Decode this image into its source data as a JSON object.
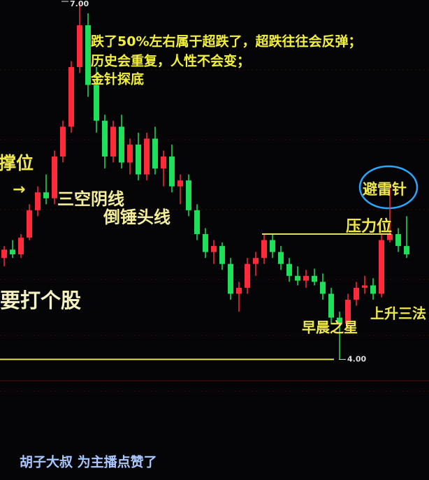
{
  "chart_data": {
    "type": "candlestick",
    "ylim": [
      3.85,
      7.0
    ],
    "yticks": [
      {
        "value": 7,
        "label": "7.00"
      },
      {
        "value": 4,
        "label": "4.00"
      }
    ],
    "up_color": "#ff2a3a",
    "down_color": "#1fe05a",
    "candles": [
      [
        4.85,
        4.95,
        4.78,
        4.92
      ],
      [
        4.92,
        5.0,
        4.85,
        4.88
      ],
      [
        4.88,
        5.05,
        4.85,
        5.02
      ],
      [
        5.02,
        5.3,
        5.0,
        5.25
      ],
      [
        5.25,
        5.45,
        5.2,
        5.4
      ],
      [
        5.4,
        5.55,
        5.3,
        5.35
      ],
      [
        5.35,
        5.75,
        5.3,
        5.7
      ],
      [
        5.7,
        6.0,
        5.65,
        5.95
      ],
      [
        5.95,
        6.5,
        5.9,
        6.45
      ],
      [
        6.45,
        7.0,
        6.4,
        6.8
      ],
      [
        6.8,
        6.9,
        6.2,
        6.3
      ],
      [
        6.3,
        6.45,
        5.9,
        6.0
      ],
      [
        6.0,
        6.05,
        5.6,
        5.7
      ],
      [
        5.7,
        6.0,
        5.65,
        5.95
      ],
      [
        5.95,
        6.05,
        5.6,
        5.65
      ],
      [
        5.65,
        5.85,
        5.55,
        5.8
      ],
      [
        5.8,
        5.9,
        5.5,
        5.55
      ],
      [
        5.55,
        5.9,
        5.5,
        5.85
      ],
      [
        5.85,
        5.95,
        5.55,
        5.6
      ],
      [
        5.6,
        5.75,
        5.45,
        5.7
      ],
      [
        5.7,
        5.8,
        5.4,
        5.45
      ],
      [
        5.45,
        5.55,
        5.3,
        5.5
      ],
      [
        5.5,
        5.55,
        5.2,
        5.25
      ],
      [
        5.25,
        5.3,
        5.0,
        5.05
      ],
      [
        5.05,
        5.1,
        4.85,
        4.9
      ],
      [
        4.9,
        5.0,
        4.8,
        4.95
      ],
      [
        4.95,
        4.98,
        4.75,
        4.8
      ],
      [
        4.8,
        4.85,
        4.5,
        4.55
      ],
      [
        4.55,
        4.65,
        4.4,
        4.6
      ],
      [
        4.6,
        4.85,
        4.55,
        4.8
      ],
      [
        4.8,
        4.9,
        4.7,
        4.85
      ],
      [
        4.85,
        5.05,
        4.8,
        5.0
      ],
      [
        5.0,
        5.05,
        4.85,
        4.9
      ],
      [
        4.9,
        4.95,
        4.75,
        4.8
      ],
      [
        4.8,
        4.85,
        4.65,
        4.7
      ],
      [
        4.7,
        4.78,
        4.62,
        4.66
      ],
      [
        4.66,
        4.75,
        4.6,
        4.7
      ],
      [
        4.7,
        4.76,
        4.62,
        4.65
      ],
      [
        4.65,
        4.72,
        4.5,
        4.55
      ],
      [
        4.55,
        4.6,
        4.3,
        4.35
      ],
      [
        4.35,
        4.4,
        4.0,
        4.3
      ],
      [
        4.3,
        4.55,
        4.28,
        4.5
      ],
      [
        4.5,
        4.65,
        4.45,
        4.6
      ],
      [
        4.6,
        4.7,
        4.55,
        4.62
      ],
      [
        4.62,
        4.68,
        4.5,
        4.55
      ],
      [
        4.55,
        5.05,
        4.52,
        5.0
      ],
      [
        5.0,
        5.45,
        4.98,
        5.05
      ],
      [
        5.05,
        5.1,
        4.9,
        4.95
      ],
      [
        4.95,
        5.2,
        4.85,
        4.88
      ]
    ],
    "pressure_line": 5.05,
    "support_line": 4.0,
    "annotations": [
      "跌了50%左右属于超跌了，超跌往往会反弹；",
      "历史会重复，人性不会变；",
      "金针探底",
      "撑位",
      "→",
      "三空阴线",
      "倒锤头线",
      "要打个股",
      "压力位",
      "避雷针",
      "早晨之星",
      "上升三法"
    ],
    "overlay_text": "胡子大叔 为主播点赞了"
  }
}
